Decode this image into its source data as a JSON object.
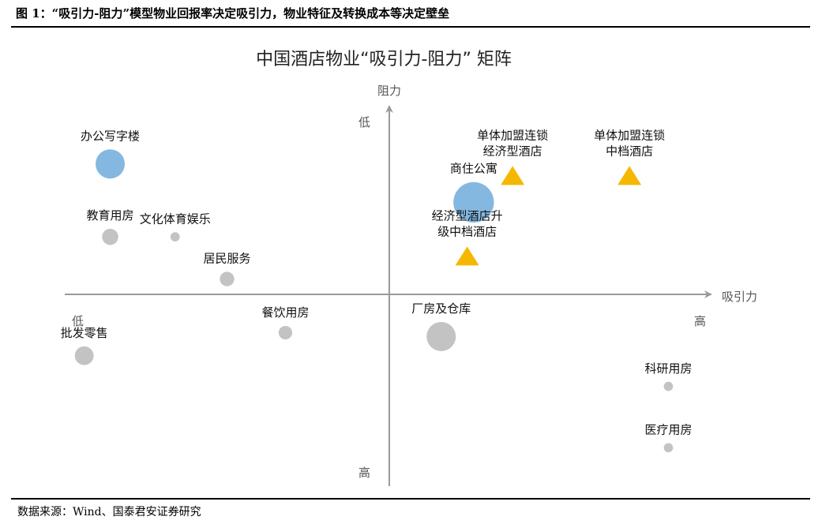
{
  "caption": "图 1：“吸引力-阻力”模型物业回报率决定吸引力，物业特征及转换成本等决定壁垒",
  "source": "数据来源：Wind、国泰君安证券研究",
  "colors": {
    "blue": "#85b8e0",
    "gray": "#c3c3c3",
    "gold": "#f5b800",
    "axis": "#9a9a9a"
  },
  "chart_data": {
    "type": "scatter",
    "title": "中国酒店物业“吸引力-阻力” 矩阵",
    "xlabel": "吸引力",
    "ylabel": "阻力",
    "x_low_label": "低",
    "x_high_label": "高",
    "y_top_label": "低",
    "y_bottom_label": "高",
    "xlim": [
      -5,
      5
    ],
    "ylim": [
      -5,
      5
    ],
    "points": [
      {
        "name": "办公写字楼",
        "label_lines": [
          "办公写字楼"
        ],
        "x": -4.3,
        "y": 3.4,
        "size": 3.0,
        "shape": "circle",
        "color": "blue"
      },
      {
        "name": "商住公寓",
        "label_lines": [
          "商住公寓"
        ],
        "x": 1.3,
        "y": 2.4,
        "size": 4.3,
        "shape": "circle",
        "color": "blue"
      },
      {
        "name": "教育用房",
        "label_lines": [
          "教育用房"
        ],
        "x": -4.3,
        "y": 1.5,
        "size": 1.5,
        "shape": "circle",
        "color": "gray"
      },
      {
        "name": "文化体育娱乐",
        "label_lines": [
          "文化体育娱乐"
        ],
        "x": -3.3,
        "y": 1.5,
        "size": 0.7,
        "shape": "circle",
        "color": "gray"
      },
      {
        "name": "居民服务",
        "label_lines": [
          "居民服务"
        ],
        "x": -2.5,
        "y": 0.4,
        "size": 1.3,
        "shape": "circle",
        "color": "gray"
      },
      {
        "name": "餐饮用房",
        "label_lines": [
          "餐饮用房"
        ],
        "x": -1.6,
        "y": -1.0,
        "size": 1.2,
        "shape": "circle",
        "color": "gray"
      },
      {
        "name": "批发零售",
        "label_lines": [
          "批发零售"
        ],
        "x": -4.7,
        "y": -1.6,
        "size": 1.8,
        "shape": "circle",
        "color": "gray"
      },
      {
        "name": "厂房及仓库",
        "label_lines": [
          "厂房及仓库"
        ],
        "x": 0.8,
        "y": -1.1,
        "size": 3.0,
        "shape": "circle",
        "color": "gray"
      },
      {
        "name": "科研用房",
        "label_lines": [
          "科研用房"
        ],
        "x": 4.3,
        "y": -2.4,
        "size": 0.7,
        "shape": "circle",
        "color": "gray"
      },
      {
        "name": "医疗用房",
        "label_lines": [
          "医疗用房"
        ],
        "x": 4.3,
        "y": -4.0,
        "size": 0.7,
        "shape": "circle",
        "color": "gray"
      },
      {
        "name": "单体加盟连锁经济型酒店",
        "label_lines": [
          "单体加盟连锁",
          "经济型酒店"
        ],
        "x": 1.9,
        "y": 3.1,
        "size": 1,
        "shape": "triangle",
        "color": "gold"
      },
      {
        "name": "单体加盟连锁中档酒店",
        "label_lines": [
          "单体加盟连锁",
          "中档酒店"
        ],
        "x": 3.7,
        "y": 3.1,
        "size": 1,
        "shape": "triangle",
        "color": "gold"
      },
      {
        "name": "经济型酒店升级中档酒店",
        "label_lines": [
          "经济型酒店升",
          "级中档酒店"
        ],
        "x": 1.2,
        "y": 1.0,
        "size": 1,
        "shape": "triangle",
        "color": "gold"
      }
    ]
  }
}
